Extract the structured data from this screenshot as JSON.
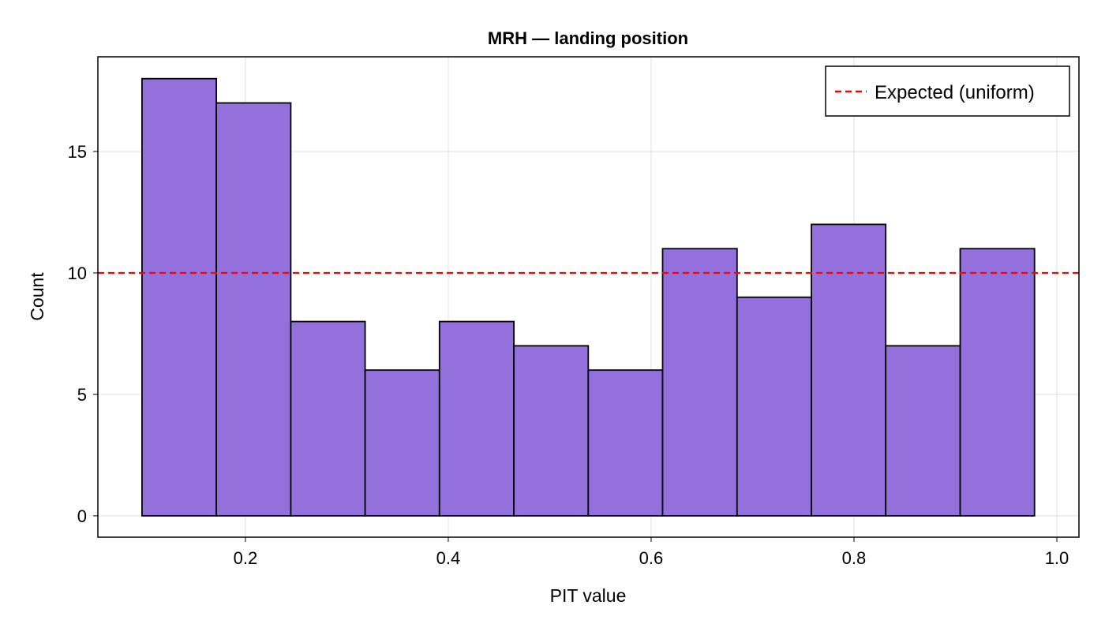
{
  "chart_data": {
    "type": "bar",
    "title": "MRH — landing position",
    "xlabel": "PIT value",
    "ylabel": "Count",
    "xlim": [
      0.0545,
      1.0218
    ],
    "ylim": [
      -0.88,
      18.9
    ],
    "xticks": [
      0.2,
      0.4,
      0.6,
      0.8,
      1.0
    ],
    "xtick_labels": [
      "0.2",
      "0.4",
      "0.6",
      "0.8",
      "1.0"
    ],
    "yticks": [
      0,
      5,
      10,
      15
    ],
    "ytick_labels": [
      "0",
      "5",
      "10",
      "15"
    ],
    "grid": true,
    "bin_edges": [
      0.098,
      0.1713,
      0.2447,
      0.318,
      0.3913,
      0.4647,
      0.538,
      0.6113,
      0.6847,
      0.758,
      0.8313,
      0.9047,
      0.978
    ],
    "values": [
      18,
      17,
      8,
      6,
      8,
      7,
      6,
      11,
      9,
      12,
      7,
      11
    ],
    "bar_color": "#9370db",
    "bar_edge_color": "#000000",
    "reference_line": {
      "name": "Expected (uniform)",
      "y": 10,
      "color": "#ff0000",
      "style": "dashed"
    },
    "legend_position": "top-right"
  }
}
